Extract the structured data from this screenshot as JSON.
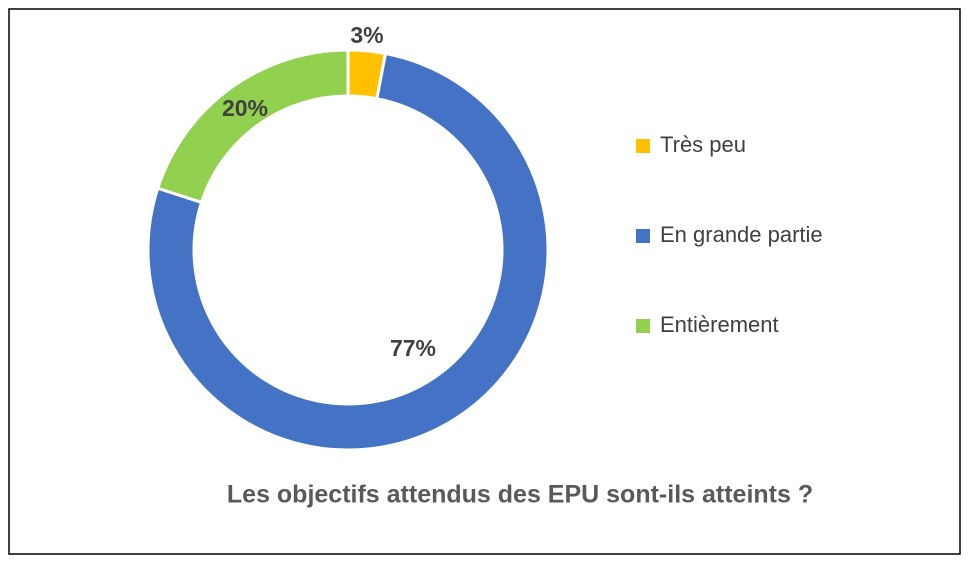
{
  "chart_data": {
    "type": "donut",
    "title": "Les objectifs attendus des EPU sont-ils atteints ?",
    "categories": [
      "Très peu",
      "En grande partie",
      "Entièrement"
    ],
    "values": [
      3,
      77,
      20
    ],
    "value_labels": [
      "3%",
      "77%",
      "20%"
    ],
    "colors": [
      "#ffc000",
      "#4472c4",
      "#92d050"
    ],
    "legend": "right"
  }
}
